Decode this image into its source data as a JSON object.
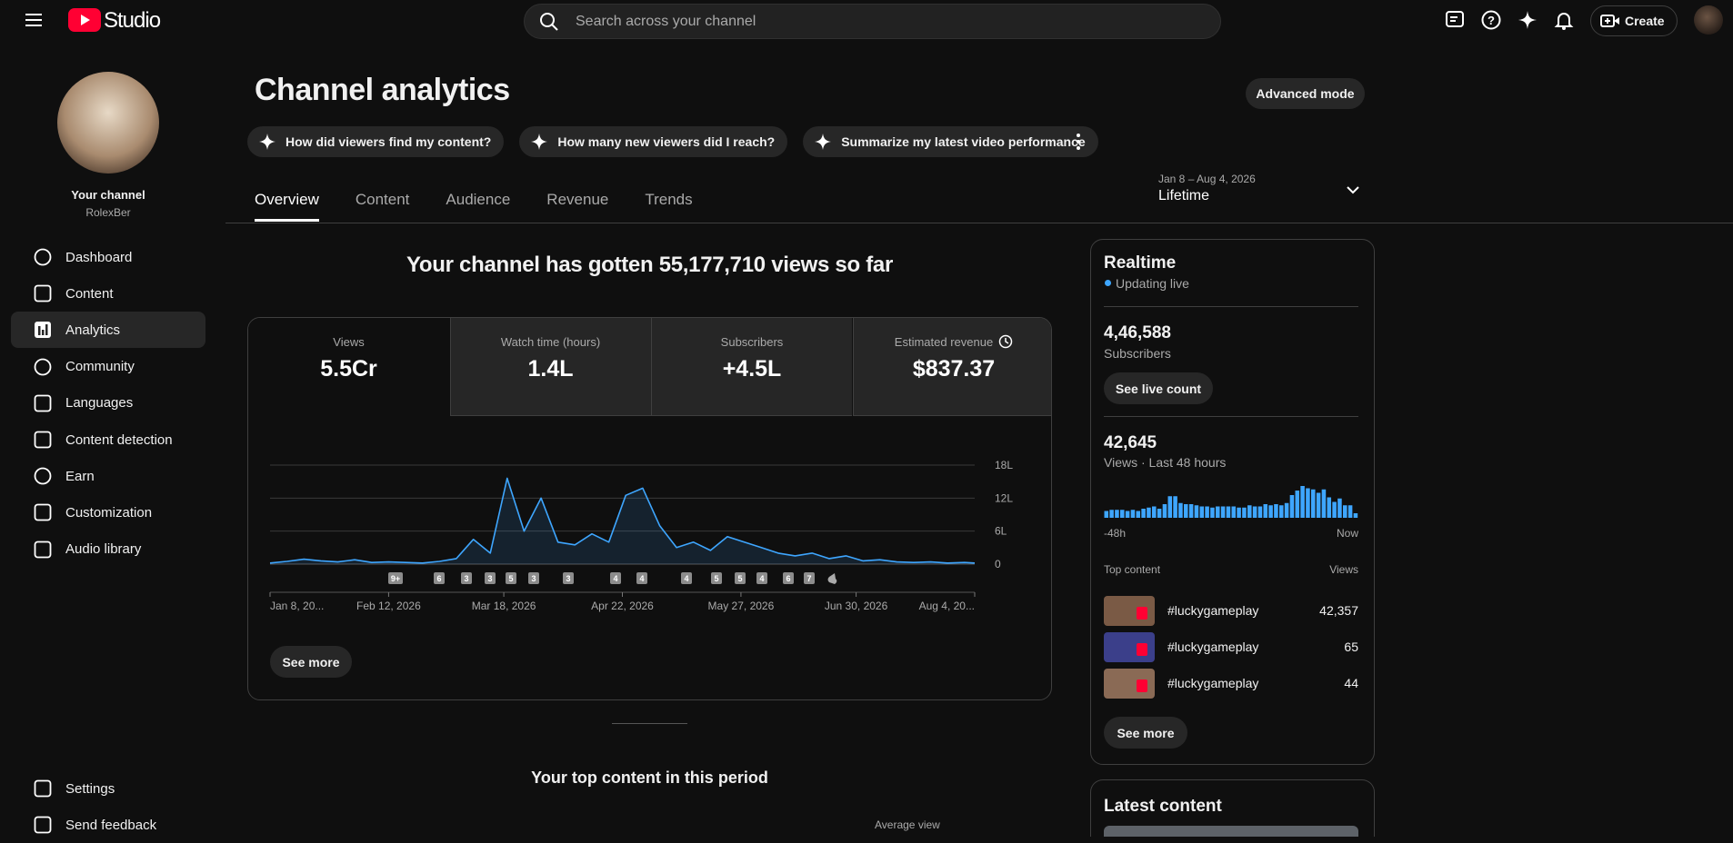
{
  "app": {
    "logo_text": "Studio",
    "search_placeholder": "Search across your channel",
    "create_button": "Create"
  },
  "sidebar": {
    "channel_label": "Your channel",
    "channel_name": "RolexBer",
    "nav": [
      "Dashboard",
      "Content",
      "Analytics",
      "Community",
      "Languages",
      "Content detection",
      "Earn",
      "Customization",
      "Audio library"
    ],
    "footer": [
      "Settings",
      "Send feedback"
    ]
  },
  "page": {
    "title": "Channel analytics",
    "advanced_mode": "Advanced mode",
    "suggestions": [
      "How did viewers find my content?",
      "How many new viewers did I reach?",
      "Summarize my latest video performance"
    ],
    "tabs": [
      "Overview",
      "Content",
      "Audience",
      "Revenue",
      "Trends"
    ],
    "date_range": "Jan 8 – Aug 4, 2026",
    "period": "Lifetime",
    "headline": "Your channel has gotten 55,177,710 views so far"
  },
  "metrics": [
    {
      "label": "Views",
      "value": "5.5Cr"
    },
    {
      "label": "Watch time (hours)",
      "value": "1.4L"
    },
    {
      "label": "Subscribers",
      "value": "+4.5L"
    },
    {
      "label": "Estimated revenue",
      "value": "$837.37"
    }
  ],
  "see_more": "See more",
  "top_content_title": "Your top content in this period",
  "average_view_label": "Average view",
  "realtime": {
    "title": "Realtime",
    "status": "Updating live",
    "subscribers": "4,46,588",
    "subscribers_label": "Subscribers",
    "live_count_button": "See live count",
    "views": "42,645",
    "views_label": "Views · Last 48 hours",
    "top_content_label": "Top content",
    "top_content_views_label": "Views",
    "top_content": [
      {
        "title": "#luckygameplay",
        "views": "42,357"
      },
      {
        "title": "#luckygameplay",
        "views": "65"
      },
      {
        "title": "#luckygameplay",
        "views": "44"
      }
    ]
  },
  "latest_content_title": "Latest content",
  "chart_data": [
    {
      "type": "line",
      "color": "#3ea6ff",
      "grid": true,
      "x": [
        "2026-01-08",
        "2026-01-13",
        "2026-01-18",
        "2026-01-23",
        "2026-01-28",
        "2026-02-02",
        "2026-02-07",
        "2026-02-12",
        "2026-02-17",
        "2026-02-22",
        "2026-02-27",
        "2026-03-04",
        "2026-03-09",
        "2026-03-14",
        "2026-03-19",
        "2026-03-24",
        "2026-03-29",
        "2026-04-03",
        "2026-04-08",
        "2026-04-13",
        "2026-04-18",
        "2026-04-23",
        "2026-04-28",
        "2026-05-03",
        "2026-05-08",
        "2026-05-13",
        "2026-05-18",
        "2026-05-23",
        "2026-05-28",
        "2026-06-02",
        "2026-06-07",
        "2026-06-12",
        "2026-06-17",
        "2026-06-22",
        "2026-06-27",
        "2026-07-02",
        "2026-07-07",
        "2026-07-12",
        "2026-07-17",
        "2026-07-22",
        "2026-07-27",
        "2026-08-01",
        "2026-08-04"
      ],
      "values": [
        0.2,
        0.5,
        0.9,
        0.6,
        0.4,
        0.8,
        0.3,
        0.4,
        0.3,
        0.2,
        0.5,
        1.0,
        4.5,
        2.0,
        15.6,
        6.0,
        12.0,
        4.0,
        3.5,
        5.5,
        4.0,
        12.5,
        13.8,
        7.0,
        3.0,
        4.0,
        2.5,
        5.0,
        4.0,
        3.0,
        2.0,
        1.5,
        2.0,
        1.0,
        1.5,
        0.6,
        0.8,
        0.4,
        0.3,
        0.4,
        0.2,
        0.3,
        0.2
      ],
      "xlim": [
        "2026-01-08",
        "2026-08-04"
      ],
      "xticks": [
        {
          "value": "2026-01-08",
          "label": "Jan 8, 20..."
        },
        {
          "value": "2026-02-12",
          "label": "Feb 12, 2026"
        },
        {
          "value": "2026-03-18",
          "label": "Mar 18, 2026"
        },
        {
          "value": "2026-04-22",
          "label": "Apr 22, 2026"
        },
        {
          "value": "2026-05-27",
          "label": "May 27, 2026"
        },
        {
          "value": "2026-06-30",
          "label": "Jun 30, 2026"
        },
        {
          "value": "2026-08-04",
          "label": "Aug 4, 20..."
        }
      ],
      "ylim": [
        0,
        18
      ],
      "yticks": [
        0,
        {
          "value": 6,
          "label": "6L"
        },
        {
          "value": 12,
          "label": "12L"
        },
        {
          "value": 18,
          "label": "18L"
        }
      ],
      "annotations": [
        "9+",
        "6",
        "3",
        "3",
        "5",
        "3",
        "3",
        "4",
        "4",
        "4",
        "5",
        "5",
        "4",
        "6",
        "7"
      ]
    },
    {
      "type": "bar",
      "color": "#3ea6ff",
      "categories": [
        "-48h",
        null,
        null,
        null,
        null,
        null,
        null,
        null,
        null,
        null,
        null,
        null,
        null,
        null,
        null,
        null,
        null,
        null,
        null,
        null,
        null,
        null,
        null,
        null,
        null,
        null,
        null,
        null,
        null,
        null,
        null,
        null,
        null,
        null,
        null,
        null,
        null,
        null,
        null,
        null,
        null,
        null,
        null,
        null,
        null,
        null,
        null,
        "Now"
      ],
      "values": [
        360,
        420,
        420,
        420,
        360,
        420,
        360,
        480,
        540,
        600,
        480,
        720,
        1140,
        1140,
        780,
        720,
        720,
        660,
        600,
        600,
        540,
        600,
        600,
        600,
        600,
        540,
        540,
        660,
        600,
        600,
        720,
        660,
        720,
        660,
        780,
        1200,
        1440,
        1680,
        1560,
        1500,
        1320,
        1500,
        1080,
        840,
        1020,
        660,
        660,
        240
      ]
    }
  ]
}
